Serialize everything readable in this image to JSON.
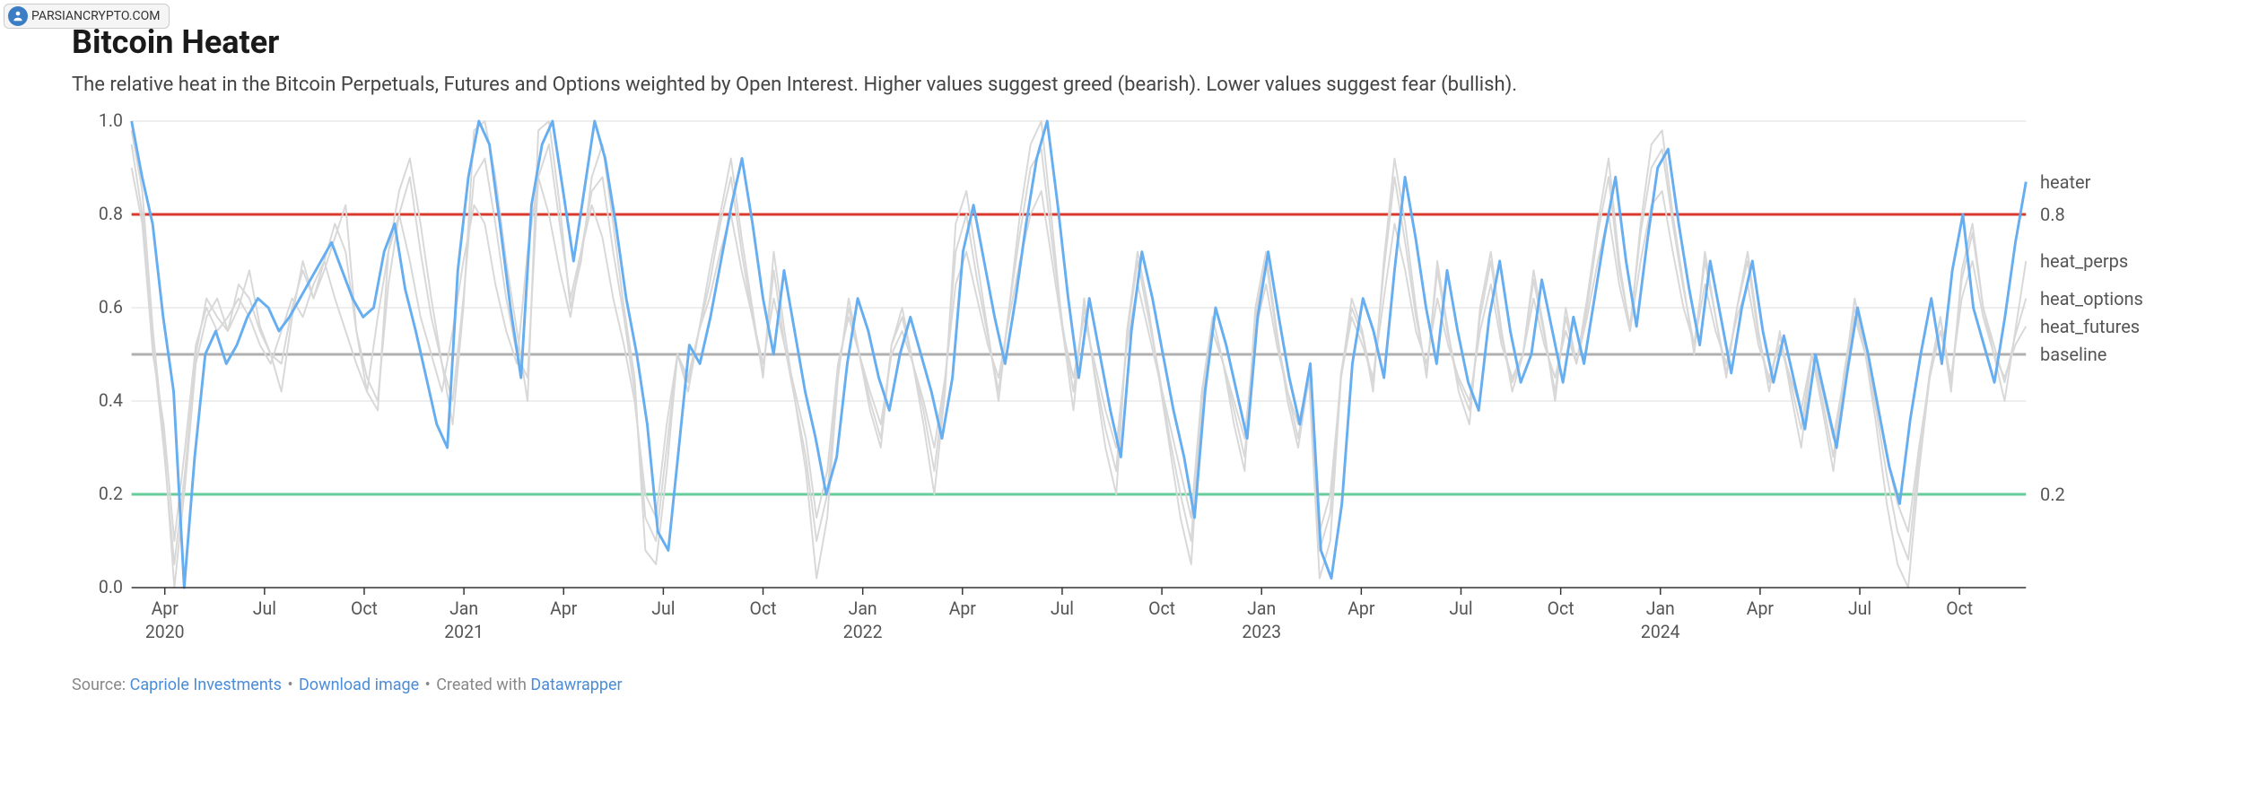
{
  "watermark": {
    "text": "PARSIANCRYPTO.COM"
  },
  "title": "Bitcoin Heater",
  "subtitle": "The relative heat in the Bitcoin Perpetuals, Futures and Options weighted by Open Interest. Higher values suggest greed (bearish). Lower values suggest fear (bullish).",
  "chart": {
    "type": "line",
    "background_color": "#ffffff",
    "grid_color": "#dddddd",
    "axis_color": "#333333",
    "label_fontsize": 20,
    "ylim": [
      0.0,
      1.0
    ],
    "ytick_step": 0.2,
    "y_ticks": [
      0.0,
      0.2,
      0.4,
      0.6,
      0.8,
      1.0
    ],
    "x_range": [
      0,
      57
    ],
    "x_ticks": [
      {
        "pos": 1,
        "label": "Apr",
        "year": "2020"
      },
      {
        "pos": 4,
        "label": "Jul",
        "year": ""
      },
      {
        "pos": 7,
        "label": "Oct",
        "year": ""
      },
      {
        "pos": 10,
        "label": "Jan",
        "year": "2021"
      },
      {
        "pos": 13,
        "label": "Apr",
        "year": ""
      },
      {
        "pos": 16,
        "label": "Jul",
        "year": ""
      },
      {
        "pos": 19,
        "label": "Oct",
        "year": ""
      },
      {
        "pos": 22,
        "label": "Jan",
        "year": "2022"
      },
      {
        "pos": 25,
        "label": "Apr",
        "year": ""
      },
      {
        "pos": 28,
        "label": "Jul",
        "year": ""
      },
      {
        "pos": 31,
        "label": "Oct",
        "year": ""
      },
      {
        "pos": 34,
        "label": "Jan",
        "year": "2023"
      },
      {
        "pos": 37,
        "label": "Apr",
        "year": ""
      },
      {
        "pos": 40,
        "label": "Jul",
        "year": ""
      },
      {
        "pos": 43,
        "label": "Oct",
        "year": ""
      },
      {
        "pos": 46,
        "label": "Jan",
        "year": "2024"
      },
      {
        "pos": 49,
        "label": "Apr",
        "year": ""
      },
      {
        "pos": 52,
        "label": "Jul",
        "year": ""
      },
      {
        "pos": 55,
        "label": "Oct",
        "year": ""
      }
    ],
    "thresholds": {
      "upper": {
        "value": 0.8,
        "color": "#d93a2b",
        "label": "0.8"
      },
      "lower": {
        "value": 0.2,
        "color": "#66cc99",
        "label": "0.2"
      },
      "baseline": {
        "value": 0.5,
        "color": "#b0b0b0",
        "label": "baseline"
      }
    },
    "right_labels": [
      {
        "text": "heater",
        "value": 0.87,
        "color": "#555555"
      },
      {
        "text": "0.8",
        "value": 0.8,
        "color": "#555555"
      },
      {
        "text": "heat_perps",
        "value": 0.7,
        "color": "#555555"
      },
      {
        "text": "heat_options",
        "value": 0.62,
        "color": "#555555"
      },
      {
        "text": "heat_futures",
        "value": 0.56,
        "color": "#555555"
      },
      {
        "text": "baseline",
        "value": 0.5,
        "color": "#555555"
      },
      {
        "text": "0.2",
        "value": 0.2,
        "color": "#555555"
      }
    ],
    "series": [
      {
        "name": "heat_perps",
        "color": "#d8d8d8",
        "width": 2,
        "values": [
          0.98,
          0.85,
          0.55,
          0.32,
          0.0,
          0.22,
          0.48,
          0.58,
          0.62,
          0.55,
          0.6,
          0.68,
          0.56,
          0.5,
          0.42,
          0.58,
          0.7,
          0.62,
          0.68,
          0.75,
          0.82,
          0.55,
          0.42,
          0.38,
          0.72,
          0.85,
          0.92,
          0.78,
          0.62,
          0.48,
          0.35,
          0.6,
          0.98,
          1.0,
          0.88,
          0.7,
          0.55,
          0.4,
          0.98,
          1.0,
          0.82,
          0.6,
          0.7,
          0.88,
          0.95,
          0.78,
          0.6,
          0.45,
          0.08,
          0.05,
          0.25,
          0.5,
          0.42,
          0.55,
          0.68,
          0.8,
          0.92,
          0.75,
          0.6,
          0.45,
          0.72,
          0.55,
          0.4,
          0.25,
          0.02,
          0.15,
          0.45,
          0.62,
          0.5,
          0.38,
          0.3,
          0.52,
          0.6,
          0.48,
          0.35,
          0.2,
          0.42,
          0.78,
          0.85,
          0.7,
          0.55,
          0.4,
          0.6,
          0.8,
          0.95,
          1.0,
          0.78,
          0.55,
          0.38,
          0.62,
          0.45,
          0.3,
          0.2,
          0.55,
          0.72,
          0.6,
          0.45,
          0.3,
          0.15,
          0.05,
          0.4,
          0.58,
          0.48,
          0.35,
          0.25,
          0.6,
          0.72,
          0.55,
          0.4,
          0.3,
          0.45,
          0.02,
          0.1,
          0.45,
          0.62,
          0.55,
          0.42,
          0.7,
          0.92,
          0.78,
          0.6,
          0.45,
          0.7,
          0.55,
          0.42,
          0.35,
          0.6,
          0.72,
          0.55,
          0.42,
          0.5,
          0.68,
          0.55,
          0.4,
          0.6,
          0.48,
          0.62,
          0.78,
          0.92,
          0.7,
          0.55,
          0.78,
          0.95,
          0.98,
          0.8,
          0.65,
          0.5,
          0.72,
          0.58,
          0.45,
          0.6,
          0.72,
          0.55,
          0.42,
          0.55,
          0.42,
          0.3,
          0.5,
          0.38,
          0.25,
          0.45,
          0.62,
          0.5,
          0.35,
          0.18,
          0.05,
          0.0,
          0.25,
          0.45,
          0.58,
          0.42,
          0.68,
          0.78,
          0.6,
          0.5,
          0.4,
          0.55,
          0.7
        ]
      },
      {
        "name": "heat_futures",
        "color": "#d8d8d8",
        "width": 2,
        "values": [
          0.9,
          0.78,
          0.5,
          0.35,
          0.1,
          0.3,
          0.52,
          0.6,
          0.55,
          0.58,
          0.62,
          0.58,
          0.52,
          0.48,
          0.55,
          0.62,
          0.58,
          0.65,
          0.7,
          0.62,
          0.55,
          0.48,
          0.42,
          0.58,
          0.72,
          0.8,
          0.7,
          0.58,
          0.5,
          0.42,
          0.55,
          0.7,
          0.82,
          0.78,
          0.65,
          0.55,
          0.48,
          0.72,
          0.88,
          0.8,
          0.68,
          0.58,
          0.72,
          0.82,
          0.75,
          0.62,
          0.52,
          0.4,
          0.2,
          0.15,
          0.35,
          0.5,
          0.45,
          0.55,
          0.62,
          0.72,
          0.8,
          0.68,
          0.58,
          0.48,
          0.62,
          0.52,
          0.42,
          0.32,
          0.15,
          0.25,
          0.48,
          0.58,
          0.5,
          0.42,
          0.35,
          0.5,
          0.55,
          0.48,
          0.4,
          0.3,
          0.45,
          0.65,
          0.72,
          0.62,
          0.52,
          0.45,
          0.58,
          0.7,
          0.8,
          0.85,
          0.7,
          0.55,
          0.45,
          0.58,
          0.48,
          0.38,
          0.3,
          0.52,
          0.65,
          0.55,
          0.45,
          0.35,
          0.25,
          0.15,
          0.42,
          0.55,
          0.48,
          0.4,
          0.32,
          0.55,
          0.65,
          0.52,
          0.42,
          0.35,
          0.45,
          0.12,
          0.2,
          0.45,
          0.58,
          0.52,
          0.45,
          0.62,
          0.78,
          0.68,
          0.55,
          0.48,
          0.62,
          0.52,
          0.45,
          0.4,
          0.55,
          0.65,
          0.52,
          0.45,
          0.5,
          0.62,
          0.52,
          0.45,
          0.55,
          0.48,
          0.58,
          0.7,
          0.8,
          0.65,
          0.55,
          0.7,
          0.82,
          0.85,
          0.72,
          0.6,
          0.52,
          0.65,
          0.55,
          0.48,
          0.58,
          0.65,
          0.52,
          0.45,
          0.52,
          0.45,
          0.38,
          0.5,
          0.42,
          0.32,
          0.45,
          0.58,
          0.5,
          0.4,
          0.28,
          0.18,
          0.12,
          0.3,
          0.45,
          0.55,
          0.45,
          0.62,
          0.7,
          0.58,
          0.5,
          0.45,
          0.52,
          0.56
        ]
      },
      {
        "name": "heat_options",
        "color": "#d8d8d8",
        "width": 2,
        "values": [
          0.95,
          0.8,
          0.52,
          0.3,
          0.05,
          0.25,
          0.5,
          0.62,
          0.58,
          0.55,
          0.65,
          0.62,
          0.55,
          0.5,
          0.48,
          0.6,
          0.68,
          0.62,
          0.7,
          0.78,
          0.72,
          0.55,
          0.45,
          0.4,
          0.65,
          0.8,
          0.88,
          0.72,
          0.58,
          0.48,
          0.4,
          0.62,
          0.88,
          0.92,
          0.78,
          0.62,
          0.5,
          0.45,
          0.88,
          0.95,
          0.78,
          0.62,
          0.72,
          0.85,
          0.88,
          0.72,
          0.58,
          0.42,
          0.15,
          0.1,
          0.3,
          0.5,
          0.44,
          0.55,
          0.65,
          0.78,
          0.88,
          0.72,
          0.58,
          0.46,
          0.68,
          0.52,
          0.4,
          0.28,
          0.1,
          0.2,
          0.46,
          0.6,
          0.5,
          0.4,
          0.32,
          0.52,
          0.58,
          0.48,
          0.38,
          0.25,
          0.44,
          0.72,
          0.8,
          0.66,
          0.54,
          0.42,
          0.6,
          0.76,
          0.9,
          0.94,
          0.74,
          0.56,
          0.42,
          0.6,
          0.46,
          0.34,
          0.25,
          0.54,
          0.7,
          0.58,
          0.46,
          0.32,
          0.2,
          0.1,
          0.42,
          0.58,
          0.48,
          0.38,
          0.28,
          0.58,
          0.7,
          0.54,
          0.42,
          0.32,
          0.46,
          0.08,
          0.16,
          0.46,
          0.6,
          0.54,
          0.44,
          0.68,
          0.88,
          0.74,
          0.58,
          0.46,
          0.68,
          0.54,
          0.44,
          0.38,
          0.58,
          0.7,
          0.54,
          0.44,
          0.5,
          0.66,
          0.54,
          0.42,
          0.58,
          0.48,
          0.6,
          0.76,
          0.88,
          0.68,
          0.56,
          0.76,
          0.9,
          0.94,
          0.78,
          0.64,
          0.52,
          0.7,
          0.58,
          0.46,
          0.6,
          0.7,
          0.54,
          0.44,
          0.54,
          0.44,
          0.34,
          0.5,
          0.4,
          0.28,
          0.46,
          0.6,
          0.5,
          0.38,
          0.24,
          0.12,
          0.06,
          0.28,
          0.46,
          0.58,
          0.44,
          0.66,
          0.76,
          0.6,
          0.52,
          0.44,
          0.54,
          0.62
        ]
      },
      {
        "name": "heater",
        "color": "#66aef0",
        "width": 3,
        "values": [
          1.0,
          0.88,
          0.78,
          0.58,
          0.42,
          0.0,
          0.28,
          0.5,
          0.55,
          0.48,
          0.52,
          0.58,
          0.62,
          0.6,
          0.55,
          0.58,
          0.62,
          0.66,
          0.7,
          0.74,
          0.68,
          0.62,
          0.58,
          0.6,
          0.72,
          0.78,
          0.64,
          0.55,
          0.45,
          0.35,
          0.3,
          0.68,
          0.88,
          1.0,
          0.95,
          0.78,
          0.6,
          0.45,
          0.82,
          0.95,
          1.0,
          0.85,
          0.7,
          0.85,
          1.0,
          0.92,
          0.78,
          0.62,
          0.5,
          0.35,
          0.12,
          0.08,
          0.3,
          0.52,
          0.48,
          0.58,
          0.7,
          0.82,
          0.92,
          0.78,
          0.62,
          0.5,
          0.68,
          0.55,
          0.42,
          0.32,
          0.2,
          0.28,
          0.48,
          0.62,
          0.55,
          0.45,
          0.38,
          0.5,
          0.58,
          0.5,
          0.42,
          0.32,
          0.45,
          0.72,
          0.82,
          0.7,
          0.58,
          0.48,
          0.62,
          0.78,
          0.92,
          1.0,
          0.82,
          0.62,
          0.45,
          0.62,
          0.5,
          0.38,
          0.28,
          0.55,
          0.72,
          0.62,
          0.5,
          0.38,
          0.28,
          0.15,
          0.42,
          0.6,
          0.52,
          0.42,
          0.32,
          0.58,
          0.72,
          0.58,
          0.45,
          0.35,
          0.48,
          0.08,
          0.02,
          0.18,
          0.48,
          0.62,
          0.55,
          0.45,
          0.68,
          0.88,
          0.75,
          0.6,
          0.48,
          0.68,
          0.55,
          0.44,
          0.38,
          0.58,
          0.7,
          0.55,
          0.44,
          0.5,
          0.66,
          0.55,
          0.44,
          0.58,
          0.48,
          0.62,
          0.76,
          0.88,
          0.7,
          0.56,
          0.74,
          0.9,
          0.94,
          0.78,
          0.64,
          0.52,
          0.7,
          0.58,
          0.46,
          0.6,
          0.7,
          0.55,
          0.44,
          0.54,
          0.44,
          0.34,
          0.5,
          0.4,
          0.3,
          0.46,
          0.6,
          0.5,
          0.38,
          0.26,
          0.18,
          0.36,
          0.5,
          0.62,
          0.48,
          0.68,
          0.8,
          0.6,
          0.52,
          0.44,
          0.58,
          0.74,
          0.87
        ]
      }
    ]
  },
  "footer": {
    "source_label": "Source:",
    "source_link": "Capriole Investments",
    "download": "Download image",
    "created": "Created with",
    "tool": "Datawrapper"
  }
}
